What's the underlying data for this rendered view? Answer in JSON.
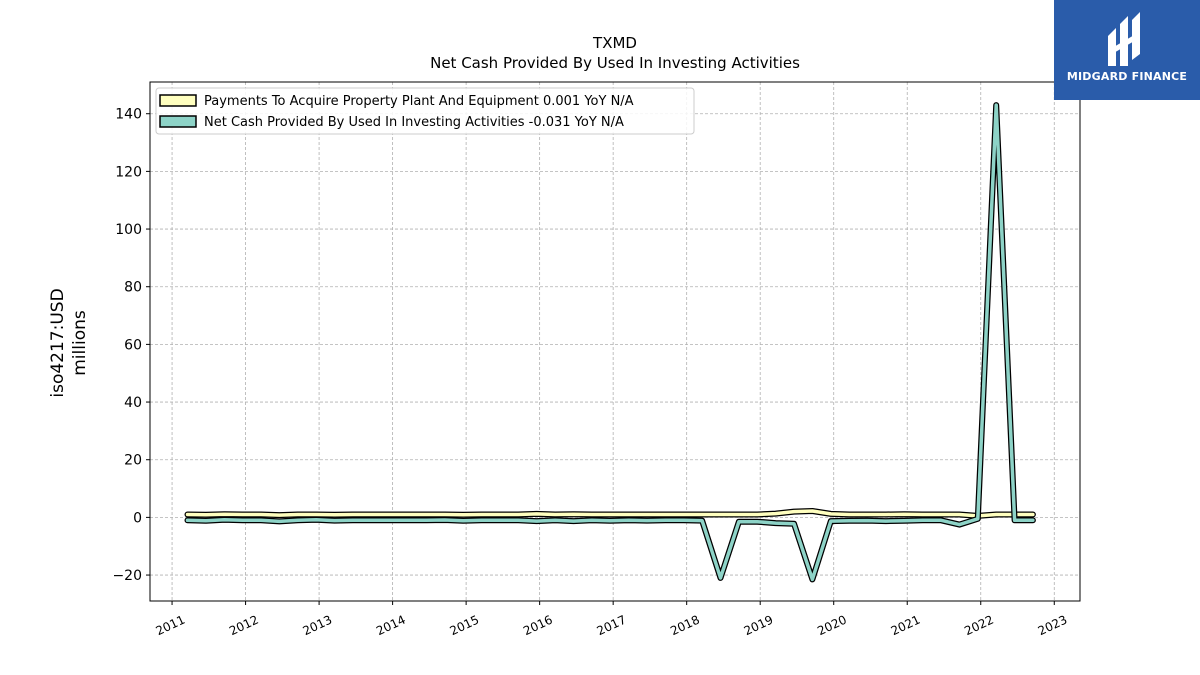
{
  "chart_data": {
    "type": "line",
    "title": "TXMD",
    "subtitle": "Net Cash Provided By Used In Investing Activities",
    "ylabel_line1": "iso4217:USD",
    "ylabel_line2": "millions",
    "ylim": [
      -29,
      151
    ],
    "xlim": [
      2010.7,
      2023.35
    ],
    "yticks": [
      -20,
      0,
      20,
      40,
      60,
      80,
      100,
      120,
      140
    ],
    "ytick_labels": [
      "−20",
      "0",
      "20",
      "40",
      "60",
      "80",
      "100",
      "120",
      "140"
    ],
    "xticks": [
      2011,
      2012,
      2013,
      2014,
      2015,
      2016,
      2017,
      2018,
      2019,
      2020,
      2021,
      2022,
      2023
    ],
    "xtick_labels": [
      "2011",
      "2012",
      "2013",
      "2014",
      "2015",
      "2016",
      "2017",
      "2018",
      "2019",
      "2020",
      "2021",
      "2022",
      "2023"
    ],
    "grid": true,
    "legend_position": "top-left",
    "series": [
      {
        "name": "Payments To Acquire Property Plant And Equipment",
        "legend_label": "Payments To Acquire Property Plant And Equipment  0.001 YoY N/A",
        "color": "#ffffbf",
        "x": [
          2011.21,
          2011.46,
          2011.71,
          2011.96,
          2012.21,
          2012.46,
          2012.71,
          2012.96,
          2013.21,
          2013.46,
          2013.71,
          2013.96,
          2014.21,
          2014.46,
          2014.71,
          2014.96,
          2015.21,
          2015.46,
          2015.71,
          2015.96,
          2016.21,
          2016.46,
          2016.71,
          2016.96,
          2017.21,
          2017.46,
          2017.71,
          2017.96,
          2018.21,
          2018.46,
          2018.71,
          2018.96,
          2019.21,
          2019.46,
          2019.71,
          2019.96,
          2020.21,
          2020.46,
          2020.71,
          2020.96,
          2021.21,
          2021.46,
          2021.71,
          2021.96,
          2022.21,
          2022.46,
          2022.71
        ],
        "values": [
          1.0,
          0.9,
          1.1,
          1.0,
          1.0,
          0.8,
          1.0,
          1.0,
          0.9,
          1.0,
          1.0,
          1.0,
          1.0,
          1.0,
          1.0,
          0.9,
          1.0,
          1.0,
          1.0,
          1.2,
          1.0,
          1.1,
          1.0,
          1.0,
          1.0,
          1.0,
          1.0,
          1.0,
          1.0,
          1.0,
          1.0,
          1.0,
          1.3,
          2.0,
          2.2,
          1.2,
          1.0,
          1.0,
          1.0,
          1.1,
          1.0,
          1.0,
          1.0,
          0.5,
          1.0,
          1.0,
          1.0
        ]
      },
      {
        "name": "Net Cash Provided By Used In Investing Activities",
        "legend_label": "Net Cash Provided By Used In Investing Activities  -0.031 YoY N/A",
        "color": "#8dd3c7",
        "x": [
          2011.21,
          2011.46,
          2011.71,
          2011.96,
          2012.21,
          2012.46,
          2012.71,
          2012.96,
          2013.21,
          2013.46,
          2013.71,
          2013.96,
          2014.21,
          2014.46,
          2014.71,
          2014.96,
          2015.21,
          2015.46,
          2015.71,
          2015.96,
          2016.21,
          2016.46,
          2016.71,
          2016.96,
          2017.21,
          2017.46,
          2017.71,
          2017.96,
          2018.21,
          2018.46,
          2018.71,
          2018.96,
          2019.21,
          2019.46,
          2019.71,
          2019.96,
          2020.21,
          2020.46,
          2020.71,
          2020.96,
          2021.21,
          2021.46,
          2021.71,
          2021.96,
          2022.21,
          2022.46,
          2022.71
        ],
        "values": [
          -1.0,
          -1.2,
          -0.8,
          -1.0,
          -1.0,
          -1.4,
          -1.0,
          -0.8,
          -1.1,
          -1.0,
          -1.0,
          -1.0,
          -1.0,
          -1.0,
          -0.9,
          -1.2,
          -1.0,
          -1.0,
          -1.0,
          -1.3,
          -1.0,
          -1.3,
          -1.0,
          -1.2,
          -1.0,
          -1.1,
          -1.0,
          -1.0,
          -1.1,
          -21.0,
          -1.5,
          -1.5,
          -2.0,
          -2.2,
          -21.5,
          -1.3,
          -1.2,
          -1.1,
          -1.3,
          -1.2,
          -1.0,
          -1.0,
          -2.5,
          -0.5,
          143.0,
          -1.0,
          -1.0
        ]
      }
    ]
  },
  "logo": {
    "text": "MIDGARD FINANCE",
    "color": "#2a5caa",
    "icon": "midgard-logo-icon"
  }
}
